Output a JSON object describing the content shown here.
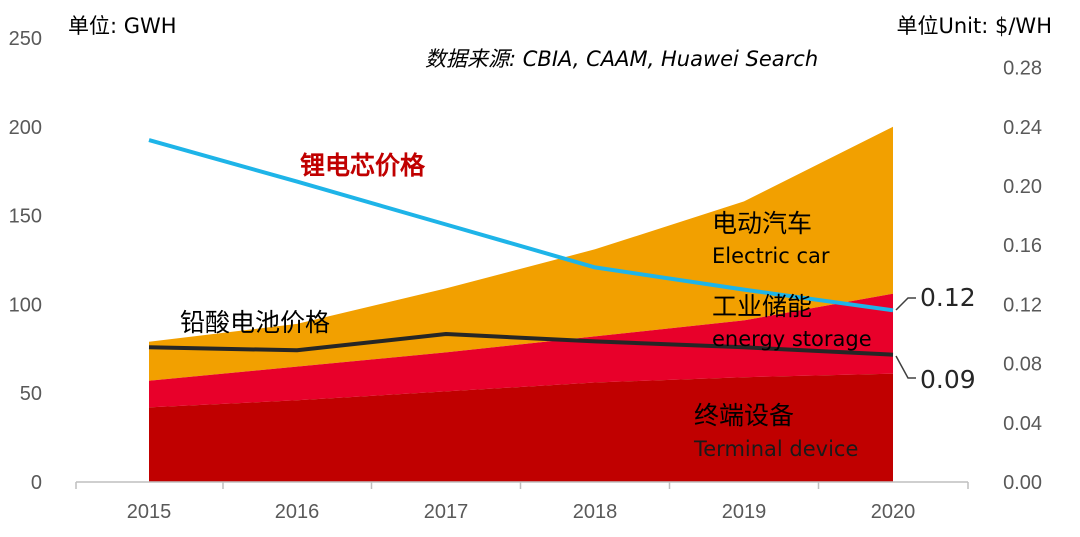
{
  "chart_data": {
    "type": "area",
    "categories": [
      "2015",
      "2016",
      "2017",
      "2018",
      "2019",
      "2020"
    ],
    "left_axis": {
      "label": "单位: GWH",
      "ylim": [
        0,
        250
      ],
      "ticks": [
        "0",
        "50",
        "100",
        "150",
        "200",
        "250"
      ]
    },
    "right_axis": {
      "label": "单位Unit: $/WH",
      "ylim": [
        0,
        0.3
      ],
      "ticks": [
        "0.00",
        "0.04",
        "0.08",
        "0.12",
        "0.16",
        "0.20",
        "0.24",
        "0.28"
      ]
    },
    "source": "数据来源: CBIA, CAAM, Huawei  Search",
    "stacked_areas": [
      {
        "label_cn": "终端设备",
        "label_en": "Terminal device",
        "color": "#c00000",
        "values": [
          42,
          46,
          51,
          56,
          59,
          61
        ]
      },
      {
        "label_cn": "工业储能",
        "label_en": "energy storage",
        "color": "#e8002a",
        "values": [
          15,
          19,
          22,
          26,
          32,
          45
        ]
      },
      {
        "label_cn": "电动汽车",
        "label_en": "Electric car",
        "color": "#f2a000",
        "values": [
          22,
          24,
          36,
          49,
          67,
          94
        ]
      }
    ],
    "lines": [
      {
        "label": "锂电芯价格",
        "color": "#1eb4e8",
        "axis": "right",
        "values": [
          0.231,
          0.203,
          0.174,
          0.145,
          0.13,
          0.116
        ],
        "end_label": "0.12"
      },
      {
        "label": "铅酸电池价格",
        "color": "#262626",
        "axis": "right",
        "values": [
          0.091,
          0.089,
          0.1,
          0.095,
          0.091,
          0.086
        ],
        "end_label": "0.09"
      }
    ],
    "grid": false,
    "legend": "inline"
  }
}
